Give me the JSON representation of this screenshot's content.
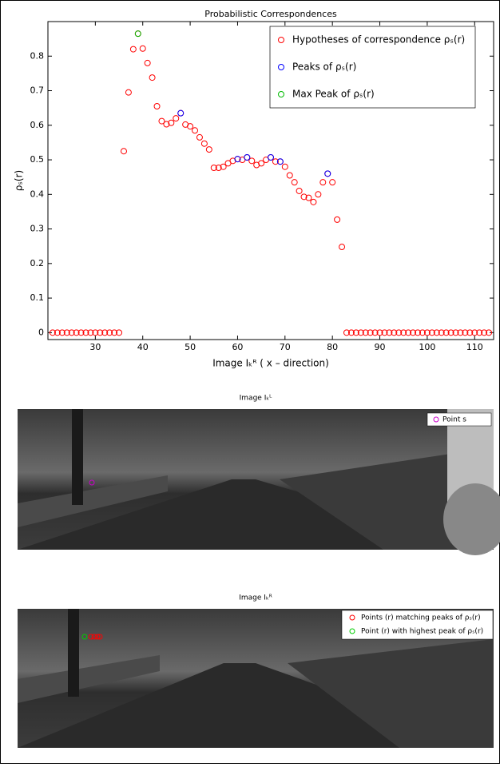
{
  "chart_data": {
    "type": "scatter",
    "title": "Probabilistic Correspondences",
    "xlabel": "Image Iₖᴿ ( x – direction)",
    "ylabel": "ρₛ(r)",
    "xlim": [
      20,
      114
    ],
    "ylim": [
      -0.02,
      0.9
    ],
    "xticks": [
      30,
      40,
      50,
      60,
      70,
      80,
      90,
      100,
      110
    ],
    "yticks": [
      0,
      0.1,
      0.2,
      0.3,
      0.4,
      0.5,
      0.6,
      0.7,
      0.8
    ],
    "grid": false,
    "legend": "upper right",
    "series": [
      {
        "name": "Hypotheses of correspondence ρₛ(r)",
        "color": "#ff0000",
        "x": [
          21,
          22,
          23,
          24,
          25,
          26,
          27,
          28,
          29,
          30,
          31,
          32,
          33,
          34,
          35,
          36,
          37,
          38,
          39,
          40,
          41,
          42,
          43,
          44,
          45,
          46,
          47,
          48,
          49,
          50,
          51,
          52,
          53,
          54,
          55,
          56,
          57,
          58,
          59,
          60,
          61,
          62,
          63,
          64,
          65,
          66,
          67,
          68,
          69,
          70,
          71,
          72,
          73,
          74,
          75,
          76,
          77,
          78,
          79,
          80,
          81,
          82,
          83,
          84,
          85,
          86,
          87,
          88,
          89,
          90,
          91,
          92,
          93,
          94,
          95,
          96,
          97,
          98,
          99,
          100,
          101,
          102,
          103,
          104,
          105,
          106,
          107,
          108,
          109,
          110,
          111,
          112,
          113
        ],
        "values": [
          0,
          0,
          0,
          0,
          0,
          0,
          0,
          0,
          0,
          0,
          0,
          0,
          0,
          0,
          0,
          0.525,
          0.695,
          0.82,
          0.865,
          0.822,
          0.78,
          0.738,
          0.655,
          0.612,
          0.603,
          0.607,
          0.62,
          0.635,
          0.602,
          0.597,
          0.585,
          0.565,
          0.547,
          0.53,
          0.477,
          0.477,
          0.48,
          0.49,
          0.497,
          0.502,
          0.5,
          0.507,
          0.497,
          0.485,
          0.49,
          0.5,
          0.507,
          0.495,
          0.495,
          0.48,
          0.455,
          0.435,
          0.41,
          0.393,
          0.39,
          0.378,
          0.4,
          0.435,
          0.46,
          0.435,
          0.327,
          0.248,
          0,
          0,
          0,
          0,
          0,
          0,
          0,
          0,
          0,
          0,
          0,
          0,
          0,
          0,
          0,
          0,
          0,
          0,
          0,
          0,
          0,
          0,
          0,
          0,
          0,
          0,
          0,
          0,
          0,
          0,
          0
        ]
      },
      {
        "name": "Peaks of ρₛ(r)",
        "color": "#0000ff",
        "x": [
          48,
          60,
          62,
          67,
          69,
          79
        ],
        "values": [
          0.635,
          0.502,
          0.507,
          0.507,
          0.495,
          0.46
        ]
      },
      {
        "name": "Max Peak of ρₛ(r)",
        "color": "#00bb00",
        "x": [
          39
        ],
        "values": [
          0.865
        ]
      }
    ]
  },
  "images": [
    {
      "title": "Image Iₖᴸ",
      "legend": [
        "Point s"
      ]
    },
    {
      "title": "Image Iₖᴿ",
      "legend": [
        "Points (r) matching peaks of ρₛ(r)",
        "Point (r) with highest peak of ρₛ(r)"
      ]
    }
  ]
}
